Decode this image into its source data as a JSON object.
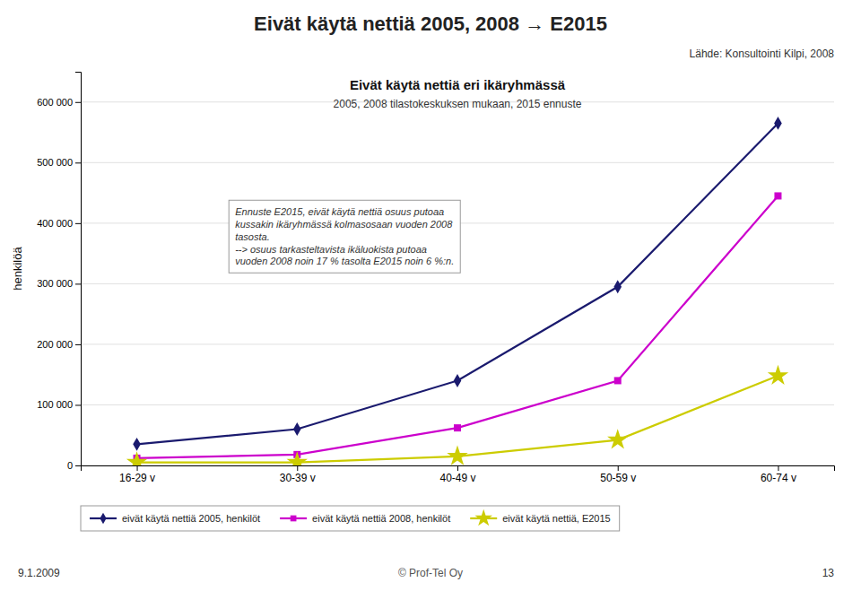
{
  "chart_data": {
    "type": "line",
    "title": "Eivät käytä nettiä 2005, 2008 → E2015",
    "chart_title": "Eivät käytä nettiä eri ikäryhmässä",
    "subtitle": "2005, 2008 tilastokeskuksen mukaan, 2015 ennuste",
    "source": "Lähde: Konsultointi Kilpi, 2008",
    "ylabel": "henkilöä",
    "annotation": "Ennuste E2015, eivät käytä nettiä osuus putoaa\nkussakin ikäryhmässä kolmasosaan vuoden 2008\ntasosta.\n--> osuus tarkasteltavista ikäluokista putoaa\nvuoden 2008 noin 17 % tasolta E2015 noin 6 %:n.",
    "footer_left": "9.1.2009",
    "footer_center": "© Prof-Tel Oy",
    "footer_right": "13",
    "categories": [
      "16-29 v",
      "30-39 v",
      "40-49 v",
      "50-59 v",
      "60-74 v"
    ],
    "series": [
      {
        "name": "eivät käytä nettiä 2005, henkilöt",
        "color": "#1a1a6e",
        "marker": "diamond",
        "values": [
          35000,
          60000,
          140000,
          295000,
          565000
        ]
      },
      {
        "name": "eivät käytä nettiä 2008, henkilöt",
        "color": "#cc00cc",
        "marker": "square",
        "values": [
          12000,
          18000,
          62000,
          140000,
          445000
        ]
      },
      {
        "name": "eivät käytä nettiä, E2015",
        "color": "#cccc00",
        "marker": "star",
        "values": [
          5000,
          5000,
          15000,
          42000,
          148000
        ]
      }
    ],
    "ylim": [
      0,
      650000
    ],
    "yticks": [
      0,
      {
        "value": 100000,
        "label": "100 000"
      },
      {
        "value": 200000,
        "label": "200 000"
      },
      {
        "value": 300000,
        "label": "300 000"
      },
      {
        "value": 400000,
        "label": "400 000"
      },
      {
        "value": 500000,
        "label": "500 000"
      },
      {
        "value": 600000,
        "label": "600 000"
      }
    ],
    "grid": true,
    "legend": "bottom"
  }
}
